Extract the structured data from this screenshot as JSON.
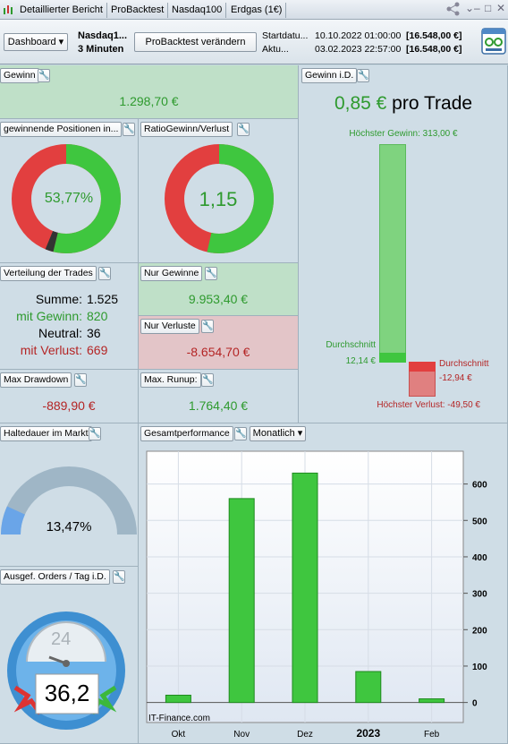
{
  "tabs": [
    "Detaillierter Bericht",
    "ProBacktest",
    "Nasdaq100",
    "Erdgas (1€)"
  ],
  "toolbar": {
    "dashboard_label": "Dashboard",
    "instrument": "Nasdaq1...",
    "timeframe": "3 Minuten",
    "change_button": "ProBacktest verändern",
    "start_label": "Startdatu...",
    "start_date": "10.10.2022 01:00:00",
    "start_capital": "[16.548,00 €]",
    "current_label": "Aktu...",
    "current_date": "03.02.2023 22:57:00",
    "current_capital": "[16.548,00 €]"
  },
  "gewinn": {
    "title": "Gewinn",
    "value": "1.298,70 €"
  },
  "winning_positions": {
    "title": "gewinnende Positionen in...",
    "value": "53,77%",
    "percent": 53.77
  },
  "ratio": {
    "title": "RatioGewinn/Verlust",
    "value": "1,15"
  },
  "distribution": {
    "title": "Verteilung der Trades",
    "sum_label": "Summe:",
    "sum_value": "1.525",
    "win_label": "mit Gewinn:",
    "win_value": "820",
    "neutral_label": "Neutral:",
    "neutral_value": "36",
    "loss_label": "mit Verlust:",
    "loss_value": "669"
  },
  "only_wins": {
    "title": "Nur Gewinne",
    "value": "9.953,40 €"
  },
  "only_losses": {
    "title": "Nur Verluste",
    "value": "-8.654,70 €"
  },
  "drawdown": {
    "title": "Max Drawdown",
    "value": "-889,90 €"
  },
  "runup": {
    "title": "Max. Runup:",
    "value": "1.764,40 €"
  },
  "gain_id": {
    "title": "Gewinn i.D.",
    "value": "0,85 €",
    "suffix": "pro Trade",
    "highest_gain": "Höchster Gewinn: 313,00 €",
    "avg_label": "Durchschnitt",
    "avg_gain": "12,14 €",
    "avg_loss": "-12,94 €",
    "highest_loss": "Höchster Verlust: -49,50 €"
  },
  "holding": {
    "title": "Haltedauer im Markt",
    "value": "13,47%",
    "percent": 13.47
  },
  "orders": {
    "title": "Ausgef. Orders / Tag i.D.",
    "value": "36,2",
    "dial_number": "24"
  },
  "performance": {
    "title": "Gesamtperformance",
    "period": "Monatlich",
    "source": "IT-Finance.com"
  },
  "colors": {
    "green": "#3fc63f",
    "red": "#e23f3f",
    "panel": "#cfdde6"
  },
  "chart_data": {
    "type": "bar",
    "categories": [
      "Okt",
      "Nov",
      "Dez",
      "2023",
      "Feb"
    ],
    "values": [
      20,
      560,
      630,
      85,
      10
    ],
    "yticks": [
      0,
      100,
      200,
      300,
      400,
      500,
      600
    ],
    "ylim": [
      -55,
      690
    ]
  }
}
